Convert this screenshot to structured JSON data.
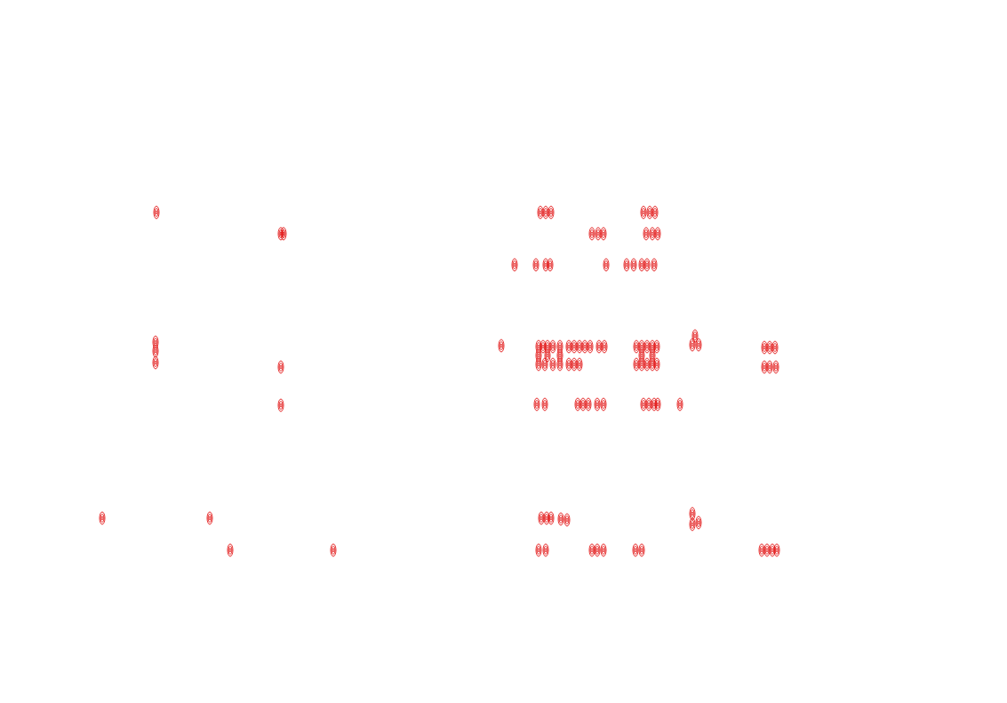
{
  "chart_data": {
    "type": "scatter",
    "color": "#e00000",
    "marker": "contour",
    "tick_labels": false,
    "grid": false,
    "xlim": [
      0,
      1133
    ],
    "ylim": [
      0,
      791
    ],
    "x": [
      176,
      316,
      319,
      175,
      175,
      175,
      316,
      316,
      115,
      236,
      259,
      375,
      608,
      614,
      620,
      724,
      731,
      737,
      666,
      673,
      679,
      727,
      734,
      740,
      579,
      603,
      614,
      619,
      682,
      705,
      713,
      722,
      728,
      736,
      564,
      606,
      611,
      616,
      622,
      630,
      640,
      646,
      652,
      658,
      664,
      674,
      680,
      606,
      613,
      622,
      630,
      640,
      646,
      652,
      716,
      722,
      728,
      734,
      739,
      716,
      722,
      728,
      734,
      739,
      606,
      616,
      630,
      722,
      734,
      779,
      786,
      782,
      860,
      866,
      872,
      860,
      866,
      873,
      604,
      613,
      650,
      656,
      662,
      672,
      679,
      724,
      730,
      736,
      740,
      765,
      609,
      615,
      620,
      631,
      638,
      779,
      786,
      779,
      606,
      614,
      666,
      672,
      679,
      715,
      722,
      857,
      863,
      869,
      874
    ],
    "values": [
      552,
      528,
      528,
      406,
      396,
      383,
      378,
      335,
      208,
      208,
      172,
      172,
      552,
      552,
      552,
      552,
      552,
      552,
      528,
      528,
      528,
      528,
      528,
      528,
      493,
      493,
      493,
      493,
      493,
      493,
      493,
      493,
      493,
      493,
      402,
      401,
      401,
      401,
      401,
      401,
      401,
      401,
      401,
      401,
      401,
      401,
      401,
      381,
      381,
      381,
      381,
      381,
      381,
      381,
      401,
      401,
      401,
      401,
      401,
      381,
      381,
      381,
      381,
      381,
      391,
      391,
      391,
      391,
      391,
      403,
      403,
      413,
      400,
      400,
      400,
      378,
      378,
      378,
      336,
      336,
      336,
      336,
      336,
      336,
      336,
      336,
      336,
      336,
      336,
      336,
      208,
      208,
      208,
      207,
      206,
      213,
      203,
      201,
      172,
      172,
      172,
      172,
      172,
      172,
      172,
      172,
      172,
      172,
      172
    ]
  }
}
